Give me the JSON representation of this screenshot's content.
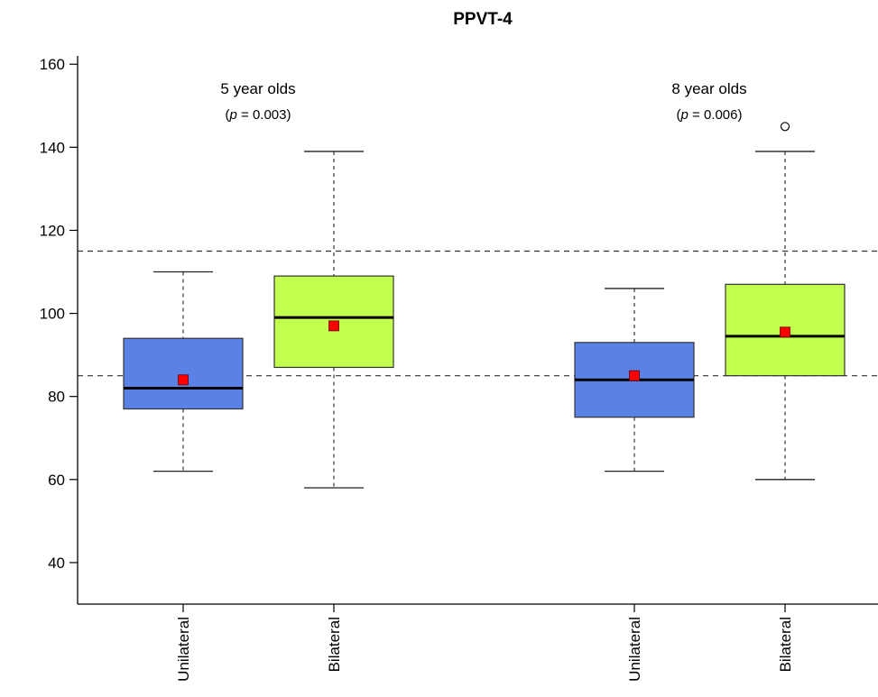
{
  "chart_data": {
    "type": "box",
    "title": "PPVT-4",
    "xlabel": "",
    "ylabel": "",
    "ylim": [
      30,
      162
    ],
    "yticks": [
      40,
      60,
      80,
      100,
      120,
      140,
      160
    ],
    "reference_lines": [
      85,
      115
    ],
    "colors": {
      "Unilateral": "#5a82e6",
      "Bilateral": "#c2ff4e",
      "mean_marker": "#ff0000"
    },
    "groups": [
      {
        "name": "5 year olds",
        "annotation": {
          "prefix": "(",
          "p": "p",
          "rest": " = 0.003)"
        },
        "boxes": [
          {
            "label": "Unilateral",
            "whisker_low": 62,
            "q1": 77,
            "median": 82,
            "q3": 94,
            "whisker_high": 110,
            "mean": 84,
            "outliers": []
          },
          {
            "label": "Bilateral",
            "whisker_low": 58,
            "q1": 87,
            "median": 99,
            "q3": 109,
            "whisker_high": 139,
            "mean": 97,
            "outliers": []
          }
        ]
      },
      {
        "name": "8 year olds",
        "annotation": {
          "prefix": "(",
          "p": "p",
          "rest": " = 0.006)"
        },
        "boxes": [
          {
            "label": "Unilateral",
            "whisker_low": 62,
            "q1": 75,
            "median": 84,
            "q3": 93,
            "whisker_high": 106,
            "mean": 85,
            "outliers": []
          },
          {
            "label": "Bilateral",
            "whisker_low": 60,
            "q1": 85,
            "median": 94.5,
            "q3": 107,
            "whisker_high": 139,
            "mean": 95.5,
            "outliers": [
              145
            ]
          }
        ]
      }
    ]
  }
}
